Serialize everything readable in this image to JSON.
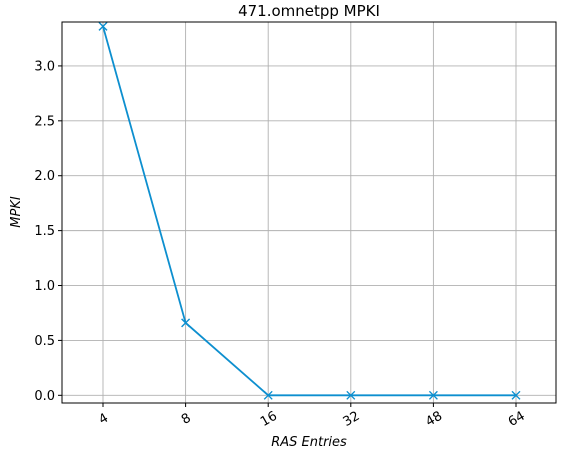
{
  "chart_data": {
    "type": "line",
    "title": "471.omnetpp MPKI",
    "xlabel": "RAS Entries",
    "ylabel": "MPKI",
    "categories": [
      "4",
      "8",
      "16",
      "32",
      "48",
      "64"
    ],
    "series": [
      {
        "values": [
          3.36,
          0.66,
          0.0,
          0.0,
          0.0,
          0.0
        ]
      }
    ],
    "yticks": [
      "0.0",
      "0.5",
      "1.0",
      "1.5",
      "2.0",
      "2.5",
      "3.0"
    ],
    "ylim": [
      -0.07,
      3.4
    ],
    "grid": true,
    "marker": "x",
    "line_color": "#0d8fcf"
  }
}
